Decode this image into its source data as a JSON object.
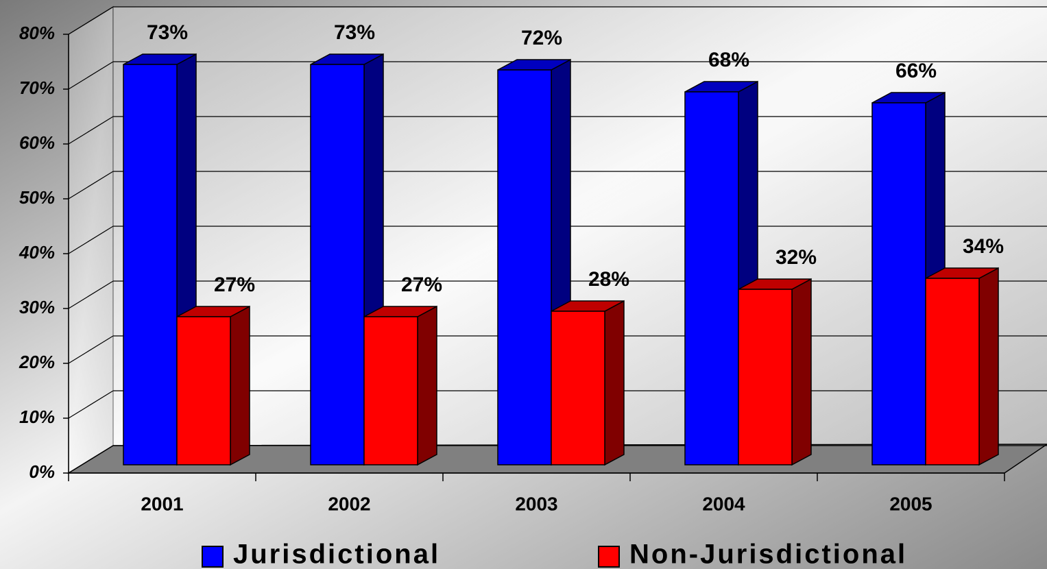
{
  "chart_data": {
    "type": "bar3d",
    "categories": [
      "2001",
      "2002",
      "2003",
      "2004",
      "2005"
    ],
    "series": [
      {
        "name": "Jurisdictional",
        "color": "#0000ff",
        "values": [
          73,
          73,
          72,
          68,
          66
        ],
        "value_labels": [
          "73%",
          "73%",
          "72%",
          "68%",
          "66%"
        ]
      },
      {
        "name": "Non-Jurisdictional",
        "color": "#ff0000",
        "values": [
          27,
          27,
          28,
          32,
          34
        ],
        "value_labels": [
          "27%",
          "27%",
          "28%",
          "32%",
          "34%"
        ]
      }
    ],
    "ylim": [
      0,
      80
    ],
    "yticks": [
      {
        "value": 0,
        "label": "0%"
      },
      {
        "value": 10,
        "label": "10%"
      },
      {
        "value": 20,
        "label": "20%"
      },
      {
        "value": 30,
        "label": "30%"
      },
      {
        "value": 40,
        "label": "40%"
      },
      {
        "value": 50,
        "label": "50%"
      },
      {
        "value": 60,
        "label": "60%"
      },
      {
        "value": 70,
        "label": "70%"
      },
      {
        "value": 80,
        "label": "80%"
      }
    ],
    "grid": true,
    "legend": "bottom"
  }
}
